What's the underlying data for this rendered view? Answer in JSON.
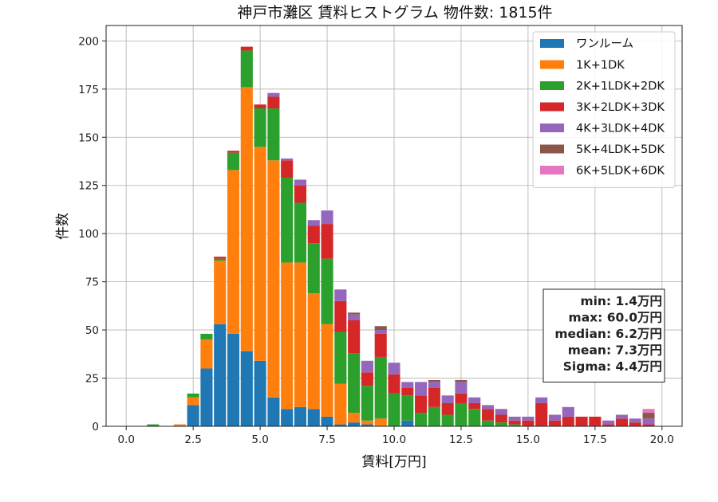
{
  "chart_data": {
    "type": "bar",
    "stacked": true,
    "title": "神戸市灘区 賃料ヒストグラム 物件数: 1815件",
    "xlabel": "賃料[万円]",
    "ylabel": "件数",
    "xlim": [
      -0.75,
      20.75
    ],
    "ylim": [
      0,
      208
    ],
    "bin_width": 0.5,
    "grid": true,
    "legend_position": "upper right",
    "xticks": [
      0,
      2.5,
      5,
      7.5,
      10,
      12.5,
      15,
      17.5,
      20
    ],
    "xtick_labels": [
      "0.0",
      "2.5",
      "5.0",
      "7.5",
      "10.0",
      "12.5",
      "15.0",
      "17.5",
      "20.0"
    ],
    "yticks": [
      0,
      25,
      50,
      75,
      100,
      125,
      150,
      175,
      200
    ],
    "ytick_labels": [
      "0",
      "25",
      "50",
      "75",
      "100",
      "125",
      "150",
      "175",
      "200"
    ],
    "bins": [
      1.0,
      2.0,
      2.5,
      3.0,
      3.5,
      4.0,
      4.5,
      5.0,
      5.5,
      6.0,
      6.5,
      7.0,
      7.5,
      8.0,
      8.5,
      9.0,
      9.5,
      10.0,
      10.5,
      11.0,
      11.5,
      12.0,
      12.5,
      13.0,
      13.5,
      14.0,
      14.5,
      15.0,
      15.5,
      16.0,
      16.5,
      17.0,
      17.5,
      18.0,
      18.5,
      19.0,
      19.5
    ],
    "series": [
      {
        "name": "ワンルーム",
        "color": "#1f77b4",
        "values": [
          0,
          0,
          11,
          30,
          53,
          48,
          39,
          34,
          15,
          9,
          10,
          9,
          5,
          1,
          2,
          1,
          0,
          0,
          3,
          0,
          0,
          0,
          0,
          0,
          0,
          0,
          0,
          0,
          0,
          0,
          0,
          0,
          0,
          0,
          0,
          0,
          0
        ]
      },
      {
        "name": "1K+1DK",
        "color": "#ff7f0e",
        "values": [
          0,
          1,
          4,
          15,
          33,
          85,
          137,
          111,
          123,
          76,
          75,
          60,
          48,
          21,
          5,
          2,
          4,
          0,
          0,
          0,
          0,
          0,
          0,
          0,
          0,
          0,
          0,
          0,
          0,
          0,
          0,
          0,
          0,
          0,
          0,
          0,
          0
        ]
      },
      {
        "name": "2K+1LDK+2DK",
        "color": "#2ca02c",
        "values": [
          1,
          0,
          2,
          3,
          1,
          9,
          19,
          20,
          27,
          44,
          31,
          26,
          34,
          27,
          31,
          18,
          32,
          17,
          13,
          7,
          10,
          6,
          12,
          9,
          3,
          2,
          1,
          0,
          0,
          0,
          0,
          0,
          0,
          0,
          0,
          0,
          0
        ]
      },
      {
        "name": "3K+2LDK+3DK",
        "color": "#d62728",
        "values": [
          0,
          0,
          0,
          0,
          1,
          1,
          2,
          2,
          6,
          9,
          9,
          9,
          18,
          16,
          17,
          7,
          12,
          10,
          4,
          9,
          10,
          6,
          5,
          3,
          6,
          4,
          2,
          3,
          12,
          3,
          5,
          5,
          5,
          1,
          4,
          2,
          1
        ]
      },
      {
        "name": "4K+3LDK+4DK",
        "color": "#9467bd",
        "values": [
          0,
          0,
          0,
          0,
          0,
          0,
          0,
          0,
          2,
          1,
          3,
          3,
          7,
          6,
          3,
          6,
          2,
          6,
          3,
          7,
          3,
          4,
          6,
          3,
          2,
          3,
          2,
          2,
          3,
          3,
          5,
          0,
          0,
          2,
          2,
          2,
          3
        ]
      },
      {
        "name": "5K+4LDK+5DK",
        "color": "#8c564b",
        "values": [
          0,
          0,
          0,
          0,
          0,
          0,
          0,
          0,
          0,
          0,
          0,
          0,
          0,
          0,
          1,
          0,
          2,
          0,
          0,
          0,
          1,
          0,
          1,
          0,
          0,
          0,
          0,
          0,
          0,
          0,
          0,
          0,
          0,
          0,
          0,
          0,
          3
        ]
      },
      {
        "name": "6K+5LDK+6DK",
        "color": "#e377c2",
        "values": [
          0,
          0,
          0,
          0,
          0,
          0,
          0,
          0,
          0,
          0,
          0,
          0,
          0,
          0,
          0,
          0,
          0,
          0,
          0,
          0,
          0,
          0,
          0,
          0,
          0,
          0,
          0,
          0,
          0,
          0,
          0,
          0,
          0,
          0,
          0,
          0,
          2
        ]
      }
    ],
    "stats": [
      "min: 1.4万円",
      "max: 60.0万円",
      "median: 6.2万円",
      "mean: 7.3万円",
      "Sigma: 4.4万円"
    ]
  }
}
